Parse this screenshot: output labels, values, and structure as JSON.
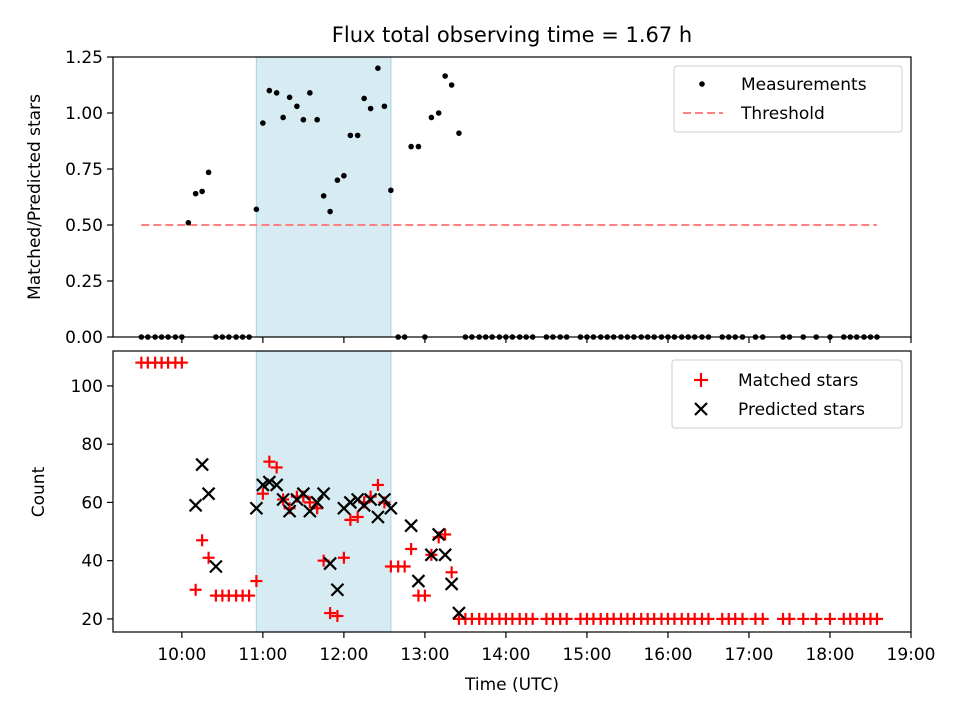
{
  "chart_data": [
    {
      "type": "scatter",
      "title": "Flux total observing time = 1.67 h",
      "xlabel": "",
      "ylabel": "Matched/Predicted stars",
      "xlim": [
        9.15,
        19.0
      ],
      "ylim": [
        0.0,
        1.25
      ],
      "yticks": [
        0.0,
        0.25,
        0.5,
        0.75,
        1.0,
        1.25
      ],
      "ytick_labels": [
        "0.00",
        "0.25",
        "0.50",
        "0.75",
        "1.00",
        "1.25"
      ],
      "xticks": [
        10,
        11,
        12,
        13,
        14,
        15,
        16,
        17,
        18,
        19
      ],
      "shaded_span": [
        10.92,
        12.58
      ],
      "legend": {
        "position": "top-right",
        "entries": [
          "Measurements",
          "Threshold"
        ]
      },
      "threshold": {
        "name": "Threshold",
        "y": 0.5,
        "x": [
          9.5,
          18.58
        ],
        "color": "#ff8080"
      },
      "series": [
        {
          "name": "Measurements",
          "color": "#000000",
          "x": [
            9.5,
            9.58,
            9.67,
            9.75,
            9.83,
            9.92,
            10.0,
            10.08,
            10.17,
            10.25,
            10.33,
            10.42,
            10.5,
            10.58,
            10.67,
            10.75,
            10.83,
            10.92,
            11.0,
            11.08,
            11.17,
            11.25,
            11.33,
            11.42,
            11.5,
            11.58,
            11.67,
            11.75,
            11.83,
            11.92,
            12.0,
            12.08,
            12.17,
            12.25,
            12.33,
            12.42,
            12.5,
            12.58,
            12.67,
            12.75,
            12.83,
            12.92,
            13.0,
            13.08,
            13.17,
            13.25,
            13.33,
            13.42,
            13.5,
            13.58,
            13.67,
            13.75,
            13.83,
            13.92,
            14.0,
            14.08,
            14.17,
            14.25,
            14.33,
            14.5,
            14.58,
            14.67,
            14.75,
            14.92,
            15.0,
            15.08,
            15.17,
            15.25,
            15.33,
            15.42,
            15.5,
            15.58,
            15.67,
            15.75,
            15.83,
            15.92,
            16.0,
            16.08,
            16.17,
            16.25,
            16.33,
            16.42,
            16.5,
            16.67,
            16.75,
            16.83,
            16.92,
            17.08,
            17.17,
            17.42,
            17.5,
            17.67,
            17.83,
            18.0,
            18.17,
            18.25,
            18.33,
            18.42,
            18.5,
            18.58
          ],
          "y": [
            0,
            0,
            0,
            0,
            0,
            0,
            0,
            0.51,
            0.64,
            0.65,
            0.735,
            0,
            0,
            0,
            0,
            0,
            0,
            0.57,
            0.955,
            1.1,
            1.09,
            0.98,
            1.07,
            1.03,
            0.97,
            1.09,
            0.97,
            0.63,
            0.56,
            0.7,
            0.72,
            0.9,
            0.9,
            1.065,
            1.02,
            1.2,
            1.03,
            0.655,
            0,
            0,
            0.85,
            0.85,
            0,
            0.98,
            1.0,
            1.165,
            1.125,
            0.91,
            0,
            0,
            0,
            0,
            0,
            0,
            0,
            0,
            0,
            0,
            0,
            0,
            0,
            0,
            0,
            0,
            0,
            0,
            0,
            0,
            0,
            0,
            0,
            0,
            0,
            0,
            0,
            0,
            0,
            0,
            0,
            0,
            0,
            0,
            0,
            0,
            0,
            0,
            0,
            0,
            0,
            0,
            0,
            0,
            0,
            0,
            0,
            0,
            0,
            0,
            0,
            0
          ]
        }
      ]
    },
    {
      "type": "scatter",
      "title": "",
      "xlabel": "Time (UTC)",
      "ylabel": "Count",
      "xlim": [
        9.15,
        19.0
      ],
      "ylim": [
        15.5,
        112
      ],
      "yticks": [
        20,
        40,
        60,
        80,
        100
      ],
      "ytick_labels": [
        "20",
        "40",
        "60",
        "80",
        "100"
      ],
      "xticks": [
        10,
        11,
        12,
        13,
        14,
        15,
        16,
        17,
        18,
        19
      ],
      "xtick_labels": [
        "10:00",
        "11:00",
        "12:00",
        "13:00",
        "14:00",
        "15:00",
        "16:00",
        "17:00",
        "18:00",
        "19:00"
      ],
      "shaded_span": [
        10.92,
        12.58
      ],
      "legend": {
        "position": "top-right",
        "entries": [
          "Matched stars",
          "Predicted stars"
        ]
      },
      "series": [
        {
          "name": "Matched stars",
          "marker": "plus",
          "color": "#ff0000",
          "x": [
            9.5,
            9.58,
            9.67,
            9.75,
            9.83,
            9.92,
            10.0,
            10.17,
            10.25,
            10.33,
            10.42,
            10.5,
            10.58,
            10.67,
            10.75,
            10.83,
            10.92,
            11.0,
            11.08,
            11.17,
            11.25,
            11.33,
            11.42,
            11.5,
            11.58,
            11.67,
            11.75,
            11.83,
            11.92,
            12.0,
            12.08,
            12.17,
            12.25,
            12.33,
            12.42,
            12.5,
            12.58,
            12.67,
            12.75,
            12.83,
            12.92,
            13.0,
            13.08,
            13.17,
            13.25,
            13.33,
            13.42,
            13.5,
            13.58,
            13.67,
            13.75,
            13.83,
            13.92,
            14.0,
            14.08,
            14.17,
            14.25,
            14.33,
            14.5,
            14.58,
            14.67,
            14.75,
            14.92,
            15.0,
            15.08,
            15.17,
            15.25,
            15.33,
            15.42,
            15.5,
            15.58,
            15.67,
            15.75,
            15.83,
            15.92,
            16.0,
            16.08,
            16.17,
            16.25,
            16.33,
            16.42,
            16.5,
            16.67,
            16.75,
            16.83,
            16.92,
            17.08,
            17.17,
            17.42,
            17.5,
            17.67,
            17.83,
            18.0,
            18.17,
            18.25,
            18.33,
            18.42,
            18.5,
            18.58
          ],
          "y": [
            108,
            108,
            108,
            108,
            108,
            108,
            108,
            30,
            47,
            41,
            28,
            28,
            28,
            28,
            28,
            28,
            33,
            63,
            74,
            72,
            61,
            58,
            62,
            62,
            60,
            58,
            40,
            22,
            21,
            41,
            54,
            55,
            60,
            62,
            66,
            60,
            38,
            38,
            38,
            44,
            28,
            28,
            42,
            48,
            49,
            36,
            20,
            20,
            20,
            20,
            20,
            20,
            20,
            20,
            20,
            20,
            20,
            20,
            20,
            20,
            20,
            20,
            20,
            20,
            20,
            20,
            20,
            20,
            20,
            20,
            20,
            20,
            20,
            20,
            20,
            20,
            20,
            20,
            20,
            20,
            20,
            20,
            20,
            20,
            20,
            20,
            20,
            20,
            20,
            20,
            20,
            20,
            20,
            20,
            20,
            20,
            20,
            20,
            20
          ]
        },
        {
          "name": "Predicted stars",
          "marker": "x",
          "color": "#000000",
          "x": [
            10.17,
            10.25,
            10.33,
            10.42,
            10.92,
            11.0,
            11.08,
            11.17,
            11.25,
            11.33,
            11.42,
            11.5,
            11.58,
            11.67,
            11.75,
            11.83,
            11.92,
            12.0,
            12.08,
            12.17,
            12.25,
            12.33,
            12.42,
            12.5,
            12.58,
            12.83,
            12.92,
            13.08,
            13.17,
            13.25,
            13.33,
            13.42
          ],
          "y": [
            59,
            73,
            63,
            38,
            58,
            66,
            67,
            66,
            61,
            57,
            61,
            63,
            57,
            60,
            63,
            39,
            30,
            58,
            60,
            61,
            59,
            61,
            55,
            61,
            58,
            52,
            33,
            42,
            49,
            42,
            32,
            22
          ]
        }
      ]
    }
  ]
}
